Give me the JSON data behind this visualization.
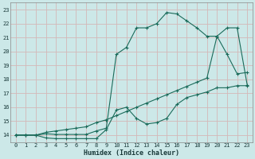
{
  "xlabel": "Humidex (Indice chaleur)",
  "xlim": [
    -0.5,
    23.5
  ],
  "ylim": [
    13.5,
    23.5
  ],
  "yticks": [
    14,
    15,
    16,
    17,
    18,
    19,
    20,
    21,
    22,
    23
  ],
  "xticks": [
    0,
    1,
    2,
    3,
    4,
    5,
    6,
    7,
    8,
    9,
    10,
    11,
    12,
    13,
    14,
    15,
    16,
    17,
    18,
    19,
    20,
    21,
    22,
    23
  ],
  "bg_color": "#cce8e8",
  "line_color": "#1a6b5a",
  "grid_color": "#b8d8d8",
  "line1_x": [
    0,
    1,
    2,
    3,
    4,
    5,
    6,
    7,
    8,
    9,
    10,
    11,
    12,
    13,
    14,
    15,
    16,
    17,
    18,
    19,
    20,
    21,
    22,
    23
  ],
  "line1_y": [
    14.0,
    14.0,
    14.0,
    14.1,
    14.05,
    14.05,
    14.05,
    14.05,
    14.3,
    14.5,
    19.8,
    20.3,
    21.7,
    21.7,
    22.0,
    22.8,
    22.7,
    22.2,
    21.7,
    21.1,
    21.1,
    19.8,
    18.4,
    18.5
  ],
  "line2_x": [
    0,
    1,
    2,
    3,
    4,
    5,
    6,
    7,
    8,
    9,
    10,
    11,
    12,
    13,
    14,
    15,
    16,
    17,
    18,
    19,
    20,
    21,
    22,
    23
  ],
  "line2_y": [
    14.0,
    14.0,
    14.0,
    14.2,
    14.3,
    14.4,
    14.5,
    14.6,
    14.9,
    15.1,
    15.4,
    15.7,
    16.0,
    16.3,
    16.6,
    16.9,
    17.2,
    17.5,
    17.8,
    18.1,
    21.1,
    21.7,
    21.7,
    17.6
  ],
  "line3_x": [
    0,
    1,
    2,
    3,
    4,
    5,
    6,
    7,
    8,
    9,
    10,
    11,
    12,
    13,
    14,
    15,
    16,
    17,
    18,
    19,
    20,
    21,
    22,
    23
  ],
  "line3_y": [
    14.0,
    14.0,
    14.0,
    13.8,
    13.75,
    13.75,
    13.75,
    13.75,
    13.75,
    14.4,
    15.8,
    16.0,
    15.2,
    14.8,
    14.9,
    15.2,
    16.2,
    16.7,
    16.9,
    17.1,
    17.4,
    17.4,
    17.55,
    17.55
  ]
}
